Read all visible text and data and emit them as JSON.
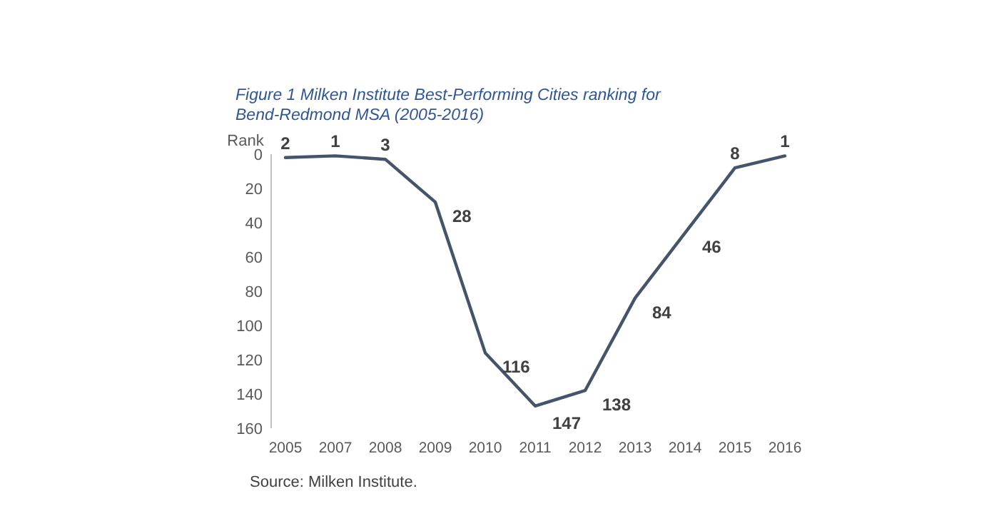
{
  "chart_data": {
    "type": "line",
    "title": "Figure 1 Milken Institute Best-Performing Cities ranking for Bend-Redmond MSA (2005-2016)",
    "ylabel": "Rank",
    "categories": [
      "2005",
      "2007",
      "2008",
      "2009",
      "2010",
      "2011",
      "2012",
      "2013",
      "2014",
      "2015",
      "2016"
    ],
    "series": [
      {
        "color": "#44546a",
        "values": [
          2,
          1,
          3,
          28,
          116,
          147,
          138,
          84,
          46,
          8,
          1
        ]
      }
    ],
    "ylim": [
      160,
      0
    ],
    "yticks": [
      0,
      20,
      40,
      60,
      80,
      100,
      120,
      140,
      160
    ],
    "data_labels": true,
    "grid": false,
    "marker": "none",
    "line_style": "solid",
    "annotations": [
      "Source: Milken Institute."
    ]
  }
}
